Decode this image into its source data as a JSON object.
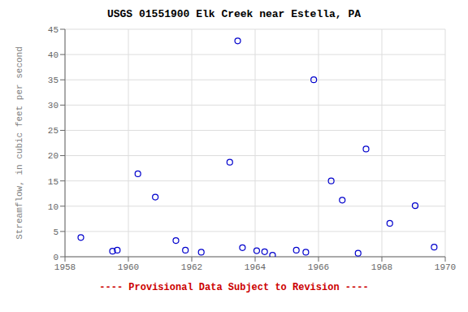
{
  "chart_data": {
    "type": "scatter",
    "title": "USGS 01551900 Elk Creek near Estella, PA",
    "y_label": "Streamflow, in cubic feet per second",
    "annotations": [
      "---- Provisional Data Subject to Revision ----"
    ],
    "x": [
      1958.5,
      1959.5,
      1959.65,
      1960.3,
      1960.85,
      1961.5,
      1961.8,
      1962.3,
      1963.2,
      1963.45,
      1963.6,
      1964.05,
      1964.3,
      1964.55,
      1965.3,
      1965.6,
      1965.85,
      1966.4,
      1966.75,
      1967.25,
      1967.5,
      1968.25,
      1969.05,
      1969.65
    ],
    "values": [
      3.8,
      1.1,
      1.3,
      16.4,
      11.8,
      3.2,
      1.3,
      0.9,
      18.7,
      42.7,
      1.8,
      1.2,
      1.0,
      0.3,
      1.3,
      0.9,
      35.0,
      15.0,
      11.2,
      0.7,
      21.3,
      6.6,
      10.1,
      1.9
    ],
    "color": "#0000cc",
    "marker": "open circle",
    "xlim": [
      1958,
      1970
    ],
    "ylim": [
      0,
      45
    ],
    "xticks": [
      1958,
      1960,
      1962,
      1964,
      1966,
      1968,
      1970
    ],
    "yticks": [
      0,
      5,
      10,
      15,
      20,
      25,
      30,
      35,
      40,
      45
    ],
    "grid": true
  }
}
